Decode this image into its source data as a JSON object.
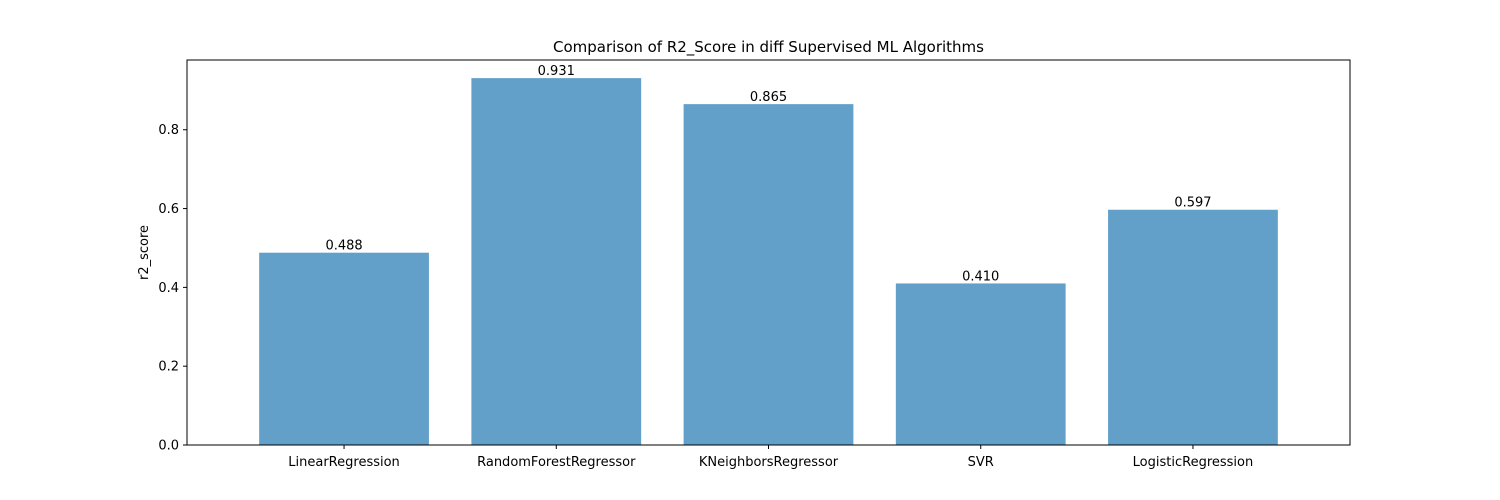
{
  "chart_data": {
    "type": "bar",
    "title": "Comparison of R2_Score in diff Supervised ML Algorithms",
    "xlabel": "",
    "ylabel": "r2_score",
    "categories": [
      "LinearRegression",
      "RandomForestRegressor",
      "KNeighborsRegressor",
      "SVR",
      "LogisticRegression"
    ],
    "values": [
      0.488,
      0.931,
      0.865,
      0.41,
      0.597
    ],
    "data_labels": [
      "0.488",
      "0.931",
      "0.865",
      "0.410",
      "0.597"
    ],
    "ylim": [
      0,
      0.977
    ],
    "yticks": [
      0.0,
      0.2,
      0.4,
      0.6,
      0.8
    ],
    "ytick_labels": [
      "0.0",
      "0.2",
      "0.4",
      "0.6",
      "0.8"
    ],
    "bar_color": "#62a0ca",
    "grid": false,
    "legend": "none"
  }
}
